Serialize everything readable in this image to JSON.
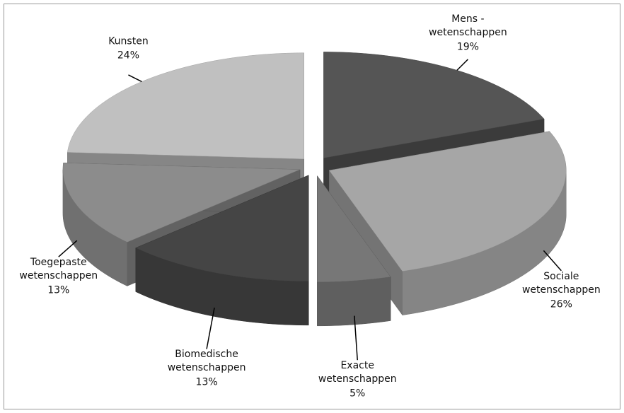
{
  "chart_data": {
    "type": "pie3d",
    "categories": [
      "Mens - wetenschappen",
      "Sociale wetenschappen",
      "Exacte wetenschappen",
      "Biomedische wetenschappen",
      "Toegepaste wetenschappen",
      "Kunsten"
    ],
    "values": [
      19,
      26,
      5,
      13,
      13,
      24
    ],
    "value_labels": [
      "19%",
      "26%",
      "5%",
      "13%",
      "13%",
      "24%"
    ],
    "colors": [
      "#555555",
      "#a6a6a6",
      "#777777",
      "#454545",
      "#8c8c8c",
      "#c0c0c0"
    ]
  }
}
